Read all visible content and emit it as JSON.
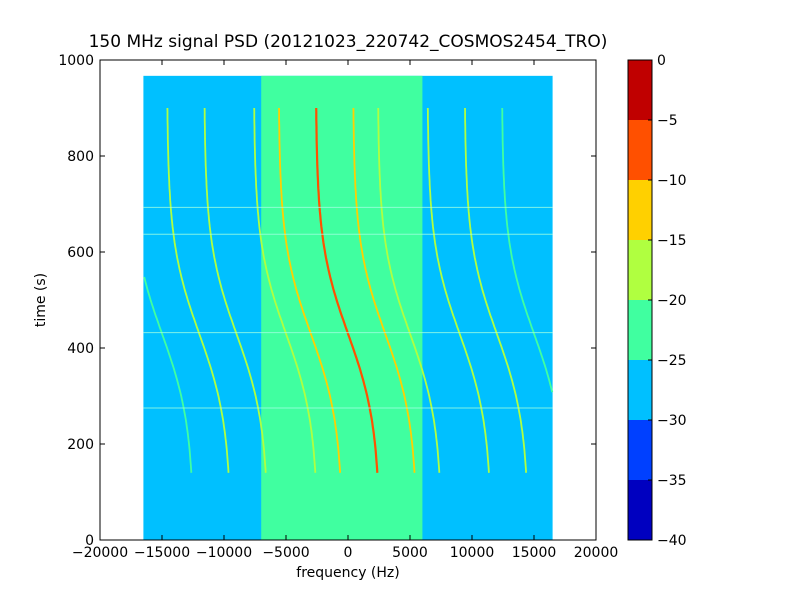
{
  "chart_data": {
    "type": "heatmap",
    "title": "150 MHz signal PSD (20121023_220742_COSMOS2454_TRO)",
    "xlabel": "frequency (Hz)",
    "ylabel": "time (s)",
    "xlim": [
      -20000,
      20000
    ],
    "ylim": [
      0,
      1000
    ],
    "x_ticks": [
      -20000,
      -15000,
      -10000,
      -5000,
      0,
      5000,
      10000,
      15000,
      20000
    ],
    "y_ticks": [
      0,
      200,
      400,
      600,
      800,
      1000
    ],
    "data_extent": {
      "x": [
        -16500,
        16500
      ],
      "y": [
        0,
        967
      ]
    },
    "background_band": {
      "x": [
        -7000,
        6000
      ],
      "level": -22.5
    },
    "background_level": -27.5,
    "horizontal_artifacts_time": [
      275,
      432,
      637,
      693
    ],
    "tracks": [
      {
        "freq_offset": 0,
        "level": -7,
        "start": 140,
        "end": 900
      },
      {
        "freq_offset": 3000,
        "level": -12,
        "start": 140,
        "end": 900
      },
      {
        "freq_offset": -3000,
        "level": -12,
        "start": 140,
        "end": 900
      },
      {
        "freq_offset": 5000,
        "level": -17,
        "start": 140,
        "end": 900
      },
      {
        "freq_offset": -5000,
        "level": -17,
        "start": 140,
        "end": 900
      },
      {
        "freq_offset": 9000,
        "level": -17,
        "start": 140,
        "end": 900
      },
      {
        "freq_offset": 12000,
        "level": -18,
        "start": 140,
        "end": 900
      },
      {
        "freq_offset": -9000,
        "level": -18,
        "start": 140,
        "end": 900
      },
      {
        "freq_offset": -12000,
        "level": -18,
        "start": 140,
        "end": 900
      },
      {
        "freq_offset": 15000,
        "level": -20,
        "start": 140,
        "end": 900
      },
      {
        "freq_offset": -15000,
        "level": -20,
        "start": 140,
        "end": 900
      }
    ],
    "colorbar": {
      "range": [
        -40,
        0
      ],
      "ticks": [
        0,
        -5,
        -10,
        -15,
        -20,
        -25,
        -30,
        -35,
        -40
      ],
      "levels": [
        {
          "from": -40,
          "to": -35,
          "color": "#0000c0"
        },
        {
          "from": -35,
          "to": -30,
          "color": "#0040ff"
        },
        {
          "from": -30,
          "to": -25,
          "color": "#00c0ff"
        },
        {
          "from": -25,
          "to": -20,
          "color": "#40ffa0"
        },
        {
          "from": -20,
          "to": -15,
          "color": "#b0ff40"
        },
        {
          "from": -15,
          "to": -10,
          "color": "#ffd000"
        },
        {
          "from": -10,
          "to": -5,
          "color": "#ff5000"
        },
        {
          "from": -5,
          "to": 0,
          "color": "#c00000"
        }
      ]
    }
  }
}
